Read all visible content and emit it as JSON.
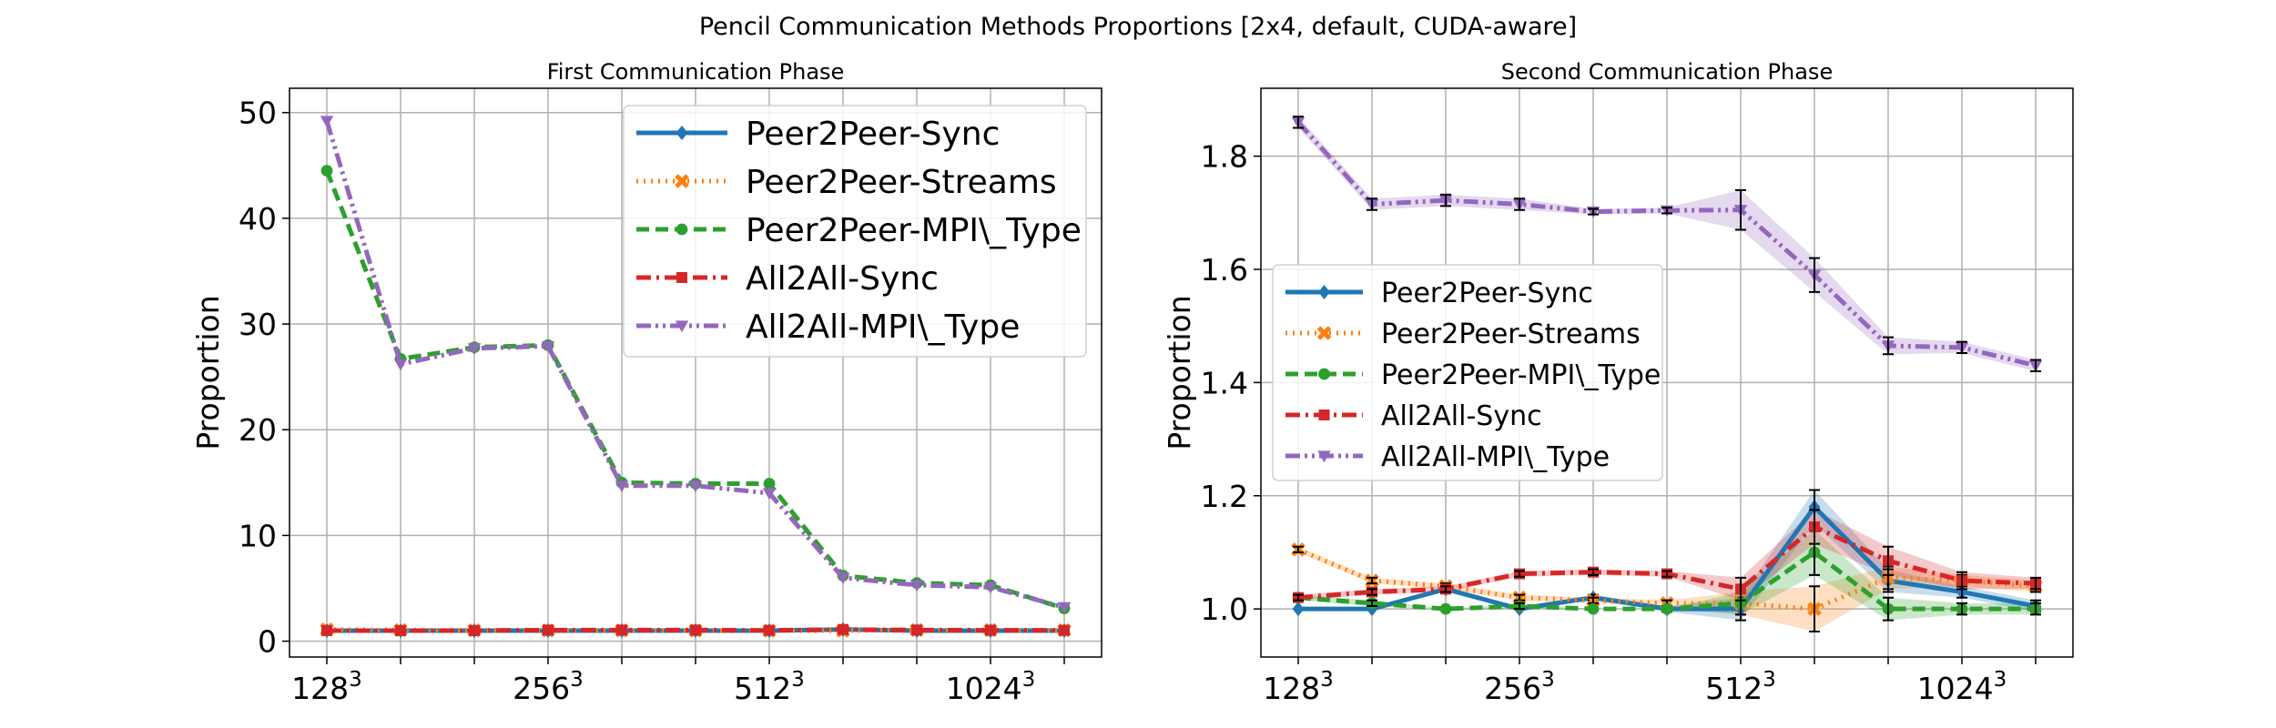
{
  "figure_title": "Pencil Communication Methods Proportions [2x4, default, CUDA-aware]",
  "chart_data": [
    {
      "type": "line",
      "title": "First Communication Phase",
      "xlabel": "",
      "ylabel": "Proportion",
      "x_ticks": [
        {
          "base": "128",
          "exp": "3"
        },
        {
          "base": "256",
          "exp": "3"
        },
        {
          "base": "512",
          "exp": "3"
        },
        {
          "base": "1024",
          "exp": "3"
        }
      ],
      "y_ticks": [
        "0",
        "10",
        "20",
        "30",
        "40",
        "50"
      ],
      "ylim": [
        -1.5,
        52.3
      ],
      "grid": true,
      "legend_position": "top-right",
      "series": [
        {
          "name": "Peer2Peer-Sync",
          "color": "#1f77b4",
          "marker": "diamond",
          "dash": "solid",
          "values": [
            1.0,
            1.0,
            1.0,
            1.0,
            1.0,
            1.0,
            1.0,
            1.1,
            1.0,
            1.0,
            1.0
          ]
        },
        {
          "name": "Peer2Peer-Streams",
          "color": "#ff7f0e",
          "marker": "x",
          "dash": "dotted",
          "values": [
            1.1,
            1.05,
            1.03,
            1.02,
            1.02,
            1.01,
            1.0,
            1.0,
            1.05,
            1.05,
            1.03
          ]
        },
        {
          "name": "Peer2Peer-MPI\\_Type",
          "color": "#2ca02c",
          "marker": "circle",
          "dash": "dashed",
          "values": [
            44.5,
            26.7,
            27.8,
            28.0,
            15.0,
            14.9,
            14.9,
            6.2,
            5.5,
            5.3,
            3.1
          ]
        },
        {
          "name": "All2All-Sync",
          "color": "#d62728",
          "marker": "square",
          "dash": "dashdot",
          "values": [
            1.0,
            1.0,
            1.0,
            1.05,
            1.05,
            1.05,
            1.02,
            1.1,
            1.05,
            1.03,
            1.03
          ]
        },
        {
          "name": "All2All-MPI\\_Type",
          "color": "#9467bd",
          "marker": "triangle-down",
          "dash": "dashdotdot",
          "values": [
            49.2,
            26.2,
            27.7,
            27.9,
            14.7,
            14.7,
            14.0,
            6.0,
            5.3,
            5.1,
            3.2
          ]
        }
      ]
    },
    {
      "type": "line",
      "title": "Second Communication Phase",
      "xlabel": "",
      "ylabel": "Proportion",
      "x_ticks": [
        {
          "base": "128",
          "exp": "3"
        },
        {
          "base": "256",
          "exp": "3"
        },
        {
          "base": "512",
          "exp": "3"
        },
        {
          "base": "1024",
          "exp": "3"
        }
      ],
      "y_ticks": [
        "1.0",
        "1.2",
        "1.4",
        "1.6",
        "1.8"
      ],
      "ylim": [
        0.915,
        1.92
      ],
      "grid": true,
      "legend_position": "center-left",
      "series": [
        {
          "name": "Peer2Peer-Sync",
          "color": "#1f77b4",
          "marker": "diamond",
          "dash": "solid",
          "values": [
            1.0,
            1.0,
            1.035,
            1.0,
            1.02,
            1.0,
            1.0,
            1.18,
            1.05,
            1.03,
            1.005
          ],
          "err": [
            0.0,
            0.0,
            0.005,
            0.0,
            0.005,
            0.005,
            0.02,
            0.03,
            0.02,
            0.01,
            0.01
          ]
        },
        {
          "name": "Peer2Peer-Streams",
          "color": "#ff7f0e",
          "marker": "x",
          "dash": "dotted",
          "values": [
            1.105,
            1.05,
            1.04,
            1.02,
            1.015,
            1.01,
            1.01,
            1.0,
            1.055,
            1.05,
            1.04
          ],
          "err": [
            0.005,
            0.005,
            0.005,
            0.005,
            0.005,
            0.005,
            0.02,
            0.04,
            0.02,
            0.01,
            0.01
          ]
        },
        {
          "name": "Peer2Peer-MPI\\_Type",
          "color": "#2ca02c",
          "marker": "circle",
          "dash": "dashed",
          "values": [
            1.02,
            1.01,
            1.0,
            1.005,
            1.0,
            1.0,
            1.01,
            1.1,
            1.0,
            1.0,
            1.0
          ],
          "err": [
            0.005,
            0.005,
            0.0,
            0.005,
            0.0,
            0.0,
            0.02,
            0.04,
            0.02,
            0.01,
            0.01
          ]
        },
        {
          "name": "All2All-Sync",
          "color": "#d62728",
          "marker": "square",
          "dash": "dashdot",
          "values": [
            1.02,
            1.03,
            1.035,
            1.062,
            1.065,
            1.062,
            1.035,
            1.145,
            1.085,
            1.05,
            1.045
          ],
          "err": [
            0.005,
            0.005,
            0.005,
            0.005,
            0.005,
            0.005,
            0.02,
            0.03,
            0.025,
            0.015,
            0.01
          ]
        },
        {
          "name": "All2All-MPI\\_Type",
          "color": "#9467bd",
          "marker": "triangle-down",
          "dash": "dashdotdot",
          "values": [
            1.86,
            1.715,
            1.722,
            1.715,
            1.702,
            1.704,
            1.705,
            1.59,
            1.465,
            1.462,
            1.43
          ],
          "err": [
            0.01,
            0.01,
            0.01,
            0.01,
            0.005,
            0.005,
            0.035,
            0.03,
            0.015,
            0.01,
            0.01
          ]
        }
      ]
    }
  ]
}
